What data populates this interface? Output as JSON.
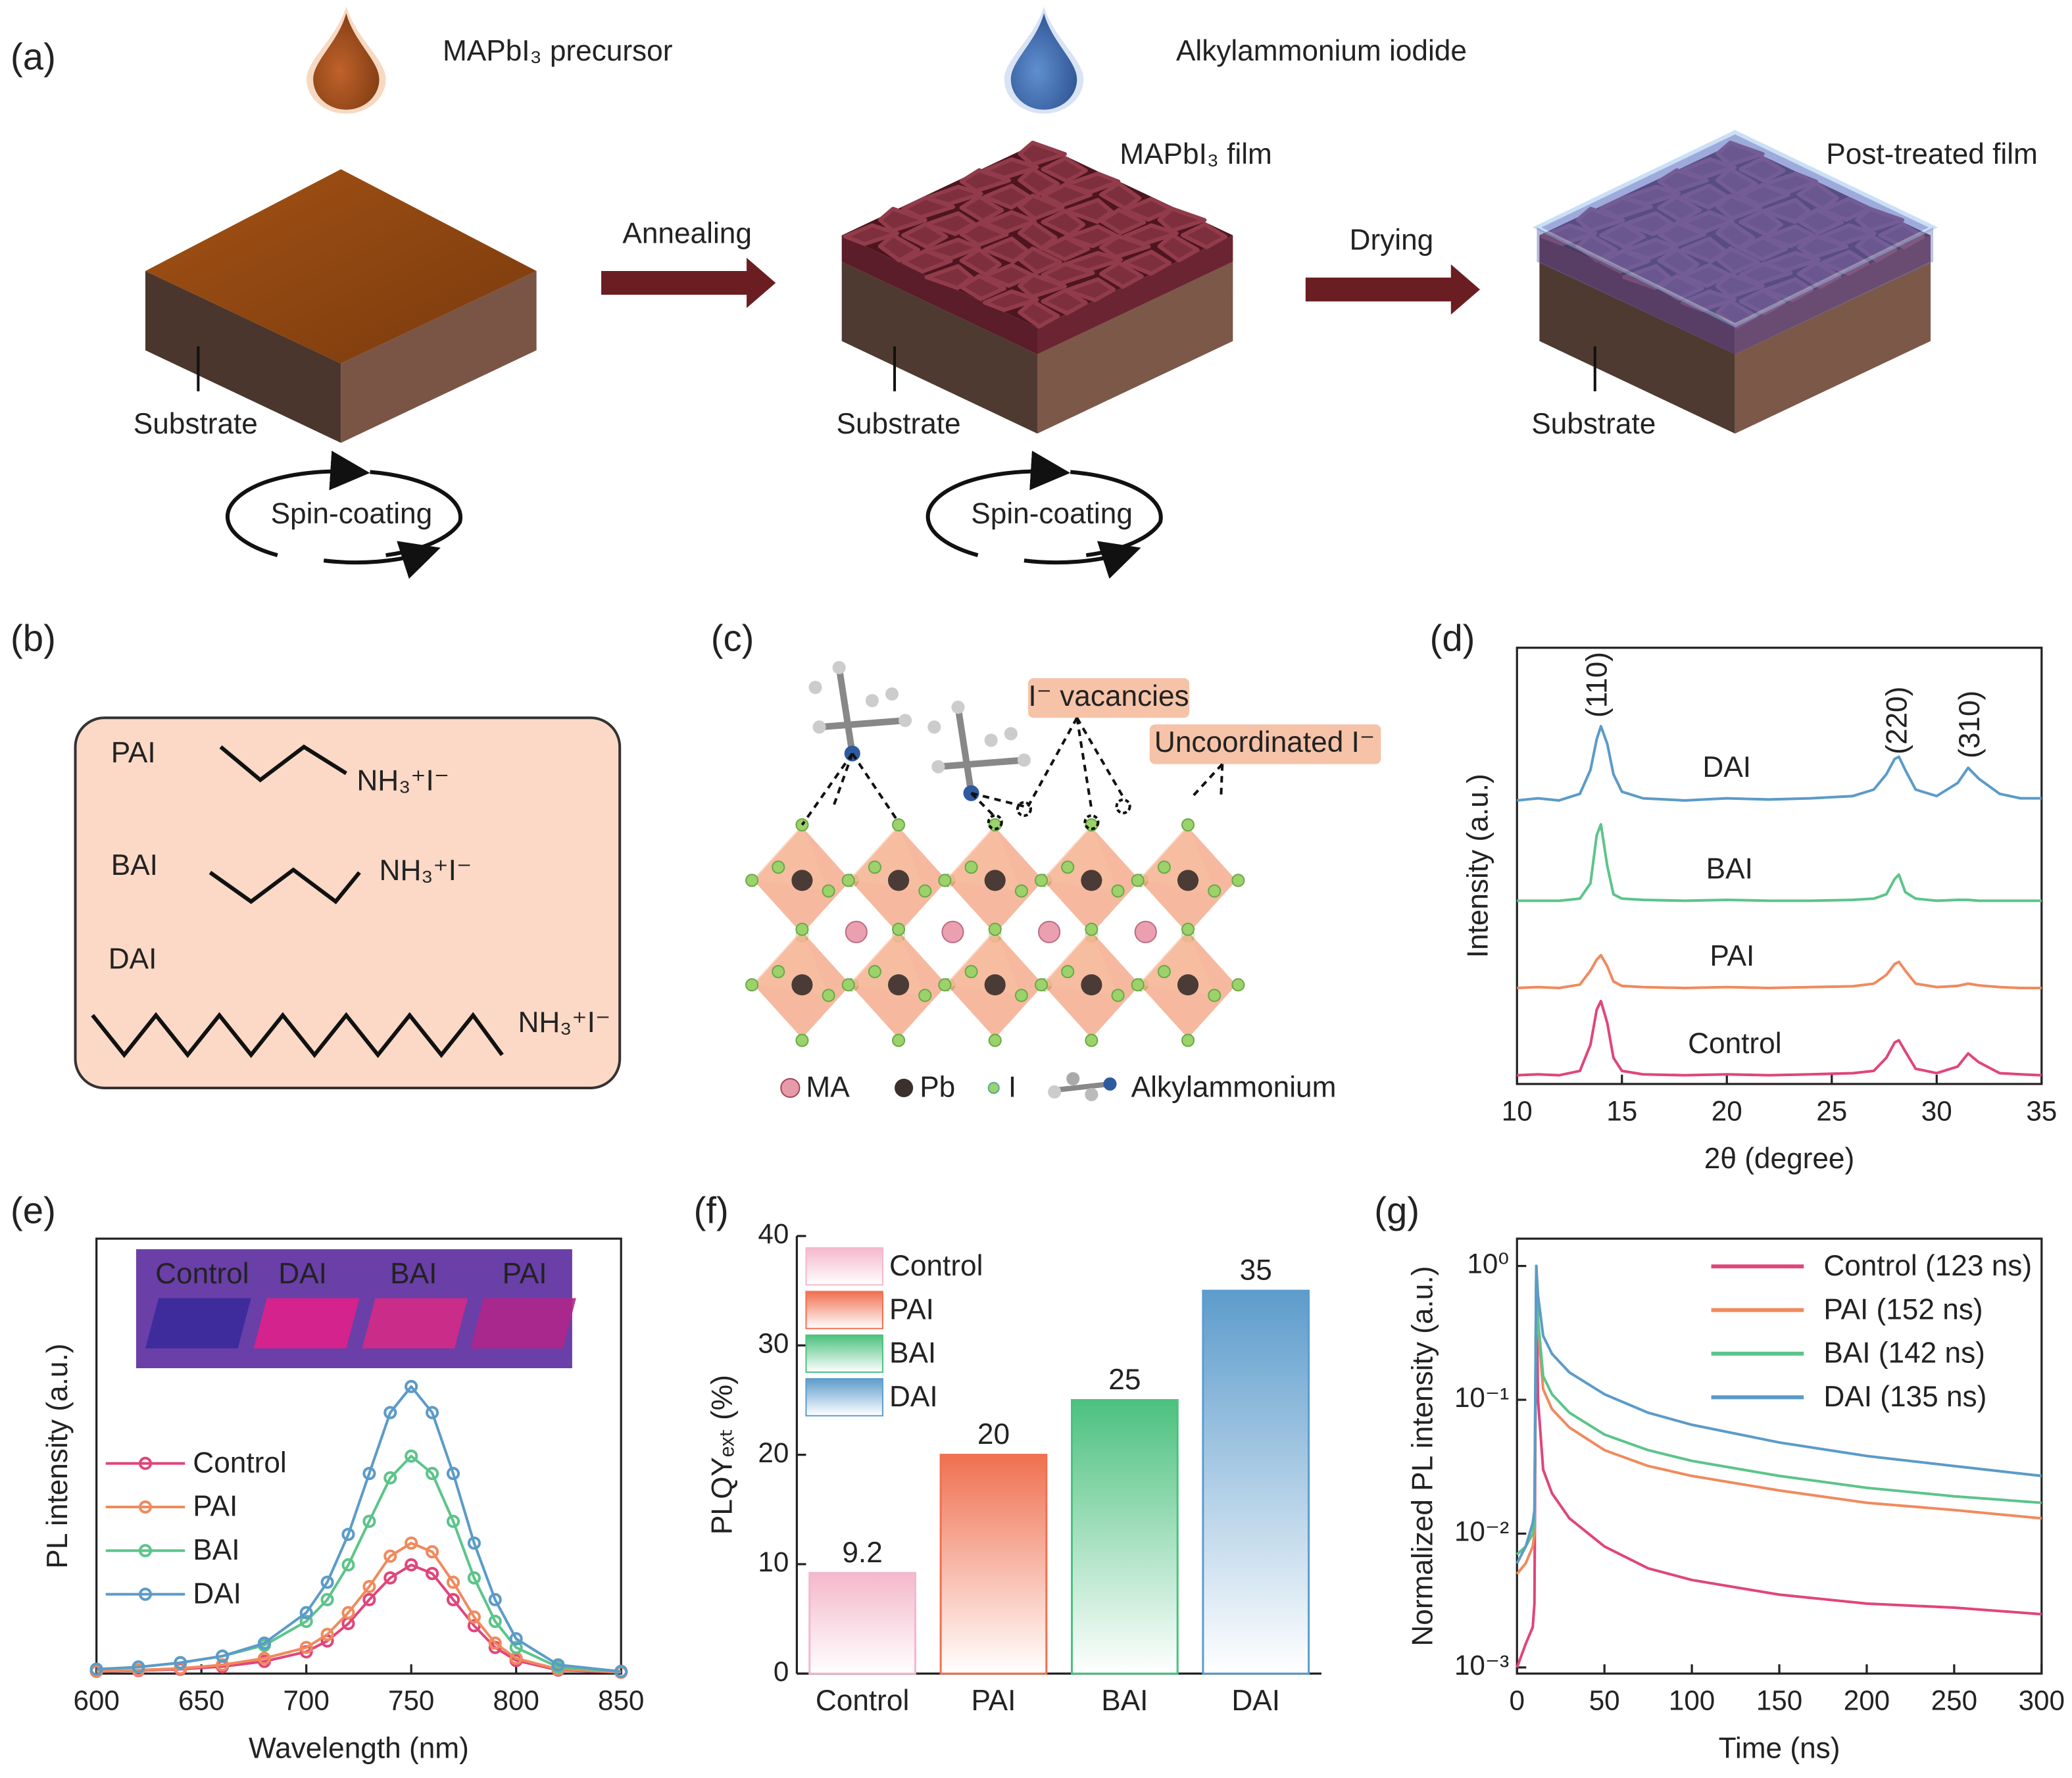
{
  "diagram": {
    "labels": [
      "(a)",
      "(b)",
      "(c)"
    ],
    "a": {
      "precursor": "MAPbI₃ precursor",
      "iodide": "Alkylammonium iodide",
      "film": "MAPbI₃ film",
      "post": "Post-treated film",
      "annealing": "Annealing",
      "drying": "Drying",
      "substrate": [
        "Substrate",
        "Substrate",
        "Substrate"
      ],
      "spin": [
        "Spin-coating",
        "Spin-coating"
      ]
    },
    "b": {
      "molecules": [
        {
          "name": "PAI",
          "formula": "NH₃⁺I⁻"
        },
        {
          "name": "BAI",
          "formula": "NH₃⁺I⁻"
        },
        {
          "name": "DAI",
          "formula": "NH₃⁺I⁻"
        }
      ]
    },
    "c": {
      "callouts": [
        "I⁻ vacancies",
        "Uncoordinated I⁻"
      ],
      "legend": [
        "MA",
        "Pb",
        "I",
        "Alkylammonium"
      ]
    }
  },
  "chart_data": [
    {
      "type": "line",
      "panel": "(d)",
      "x_label": "2θ (degree)",
      "y_label": "Intensity (a.u.)",
      "peak_labels": [
        "(110)",
        "(220)",
        "(310)"
      ],
      "x": [
        10,
        11,
        12,
        13,
        13.5,
        13.8,
        14,
        14.3,
        14.6,
        15,
        16,
        18,
        20,
        22,
        24,
        26,
        27,
        27.6,
        28,
        28.2,
        28.5,
        29,
        30,
        31,
        31.5,
        32,
        33,
        34,
        35
      ],
      "series": [
        {
          "name": "DAI",
          "color": "#5b9bc8",
          "values": [
            6.5,
            6.55,
            6.5,
            6.65,
            7.2,
            7.9,
            8.2,
            7.8,
            7.1,
            6.7,
            6.55,
            6.5,
            6.55,
            6.52,
            6.55,
            6.6,
            6.75,
            7.1,
            7.45,
            7.5,
            7.2,
            6.75,
            6.6,
            6.9,
            7.25,
            7.0,
            6.65,
            6.55,
            6.55
          ]
        },
        {
          "name": "BAI",
          "color": "#5cc48a",
          "values": [
            4.2,
            4.2,
            4.2,
            4.25,
            4.6,
            5.7,
            5.95,
            5.0,
            4.35,
            4.25,
            4.22,
            4.2,
            4.22,
            4.2,
            4.2,
            4.22,
            4.25,
            4.35,
            4.7,
            4.8,
            4.4,
            4.25,
            4.2,
            4.22,
            4.22,
            4.2,
            4.2,
            4.2,
            4.2
          ]
        },
        {
          "name": "PAI",
          "color": "#f08a5d",
          "values": [
            2.2,
            2.22,
            2.2,
            2.28,
            2.6,
            2.85,
            2.95,
            2.7,
            2.35,
            2.25,
            2.22,
            2.2,
            2.22,
            2.2,
            2.22,
            2.24,
            2.3,
            2.5,
            2.75,
            2.8,
            2.6,
            2.3,
            2.22,
            2.25,
            2.3,
            2.26,
            2.22,
            2.2,
            2.2
          ]
        },
        {
          "name": "Control",
          "color": "#e0457b",
          "values": [
            0.2,
            0.22,
            0.2,
            0.3,
            0.9,
            1.7,
            1.9,
            1.4,
            0.6,
            0.3,
            0.22,
            0.2,
            0.22,
            0.2,
            0.22,
            0.25,
            0.3,
            0.6,
            0.95,
            1.0,
            0.75,
            0.35,
            0.25,
            0.4,
            0.7,
            0.5,
            0.25,
            0.22,
            0.2
          ]
        }
      ],
      "xlim": [
        10,
        35
      ],
      "xticks": [
        10,
        15,
        20,
        25,
        30,
        35
      ],
      "ylim": [
        0,
        10
      ],
      "frame": true,
      "legend": "inline"
    },
    {
      "type": "line",
      "panel": "(e)",
      "x_label": "Wavelength (nm)",
      "y_label": "PL intensity (a.u.)",
      "inset_labels": [
        "Control",
        "DAI",
        "BAI",
        "PAI"
      ],
      "markers": true,
      "x": [
        600,
        620,
        640,
        660,
        680,
        700,
        710,
        720,
        730,
        740,
        750,
        760,
        770,
        780,
        790,
        800,
        820,
        850
      ],
      "series": [
        {
          "name": "Control",
          "color": "#e0457b",
          "values": [
            0.005,
            0.007,
            0.01,
            0.016,
            0.028,
            0.05,
            0.075,
            0.115,
            0.17,
            0.22,
            0.25,
            0.23,
            0.17,
            0.11,
            0.06,
            0.03,
            0.008,
            0.003
          ]
        },
        {
          "name": "PAI",
          "color": "#f08a5d",
          "values": [
            0.005,
            0.008,
            0.012,
            0.02,
            0.035,
            0.06,
            0.09,
            0.14,
            0.2,
            0.27,
            0.3,
            0.28,
            0.21,
            0.13,
            0.07,
            0.035,
            0.01,
            0.003
          ]
        },
        {
          "name": "BAI",
          "color": "#5cc48a",
          "values": [
            0.01,
            0.015,
            0.025,
            0.04,
            0.065,
            0.12,
            0.17,
            0.25,
            0.35,
            0.45,
            0.5,
            0.46,
            0.35,
            0.22,
            0.12,
            0.06,
            0.015,
            0.005
          ]
        },
        {
          "name": "DAI",
          "color": "#5b9bc8",
          "values": [
            0.01,
            0.015,
            0.025,
            0.04,
            0.07,
            0.14,
            0.21,
            0.32,
            0.46,
            0.6,
            0.66,
            0.6,
            0.46,
            0.3,
            0.17,
            0.08,
            0.02,
            0.005
          ]
        }
      ],
      "xlim": [
        600,
        850
      ],
      "xticks": [
        600,
        650,
        700,
        750,
        800,
        850
      ],
      "ylim": [
        0,
        1
      ],
      "frame": true,
      "legend": "left"
    },
    {
      "type": "bar",
      "panel": "(f)",
      "y_label": "PLQYₑₓₜ (%)",
      "categories": [
        "Control",
        "PAI",
        "BAI",
        "DAI"
      ],
      "values": [
        9.2,
        20,
        25,
        35
      ],
      "colors": [
        "#f4b8cb",
        "#f07050",
        "#4cc17f",
        "#5d9ccc"
      ],
      "ylim": [
        0,
        40
      ],
      "yticks": [
        0,
        10,
        20,
        30,
        40
      ],
      "frame": false,
      "legend": "upper left"
    },
    {
      "type": "line",
      "panel": "(g)",
      "x_label": "Time (ns)",
      "y_label": "Normalized PL intensity (a.u.)",
      "yscale": "log",
      "x": [
        0,
        5,
        9,
        10,
        11,
        12,
        15,
        20,
        30,
        50,
        75,
        100,
        150,
        200,
        250,
        300
      ],
      "series": [
        {
          "name": "Control (123 ns)",
          "color": "#e0457b",
          "values": [
            0.001,
            0.0015,
            0.002,
            0.003,
            1.0,
            0.1,
            0.03,
            0.02,
            0.013,
            0.008,
            0.0055,
            0.0045,
            0.0035,
            0.003,
            0.0028,
            0.0025
          ]
        },
        {
          "name": "PAI (152 ns)",
          "color": "#f08a5d",
          "values": [
            0.005,
            0.006,
            0.008,
            0.01,
            1.0,
            0.35,
            0.12,
            0.085,
            0.062,
            0.042,
            0.032,
            0.027,
            0.021,
            0.017,
            0.015,
            0.013
          ]
        },
        {
          "name": "BAI (142 ns)",
          "color": "#5cc48a",
          "values": [
            0.007,
            0.008,
            0.01,
            0.012,
            1.0,
            0.4,
            0.15,
            0.11,
            0.08,
            0.055,
            0.042,
            0.035,
            0.027,
            0.022,
            0.019,
            0.017
          ]
        },
        {
          "name": "DAI (135 ns)",
          "color": "#5b9bc8",
          "values": [
            0.006,
            0.008,
            0.012,
            0.015,
            1.0,
            0.6,
            0.3,
            0.22,
            0.16,
            0.11,
            0.08,
            0.065,
            0.048,
            0.038,
            0.032,
            0.027
          ]
        }
      ],
      "xlim": [
        0,
        300
      ],
      "xticks": [
        0,
        50,
        100,
        150,
        200,
        250,
        300
      ],
      "ylim": [
        0.0009,
        1.6
      ],
      "yticks": [
        {
          "value": 1,
          "label": "10⁰"
        },
        {
          "value": 0.1,
          "label": "10⁻¹"
        },
        {
          "value": 0.01,
          "label": "10⁻²"
        },
        {
          "value": 0.001,
          "label": "10⁻³"
        }
      ],
      "frame": true,
      "legend": "upper right"
    }
  ]
}
